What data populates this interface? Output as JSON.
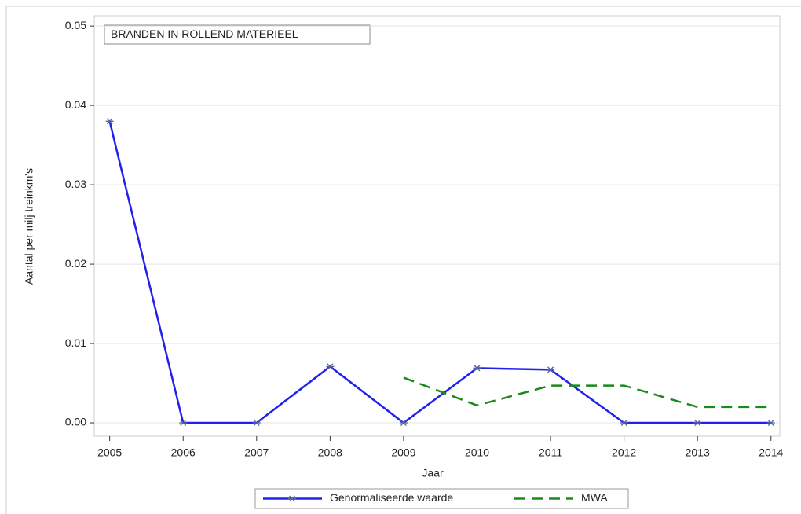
{
  "chart_data": {
    "type": "line",
    "annotation": "BRANDEN IN ROLLEND MATERIEEL",
    "xlabel": "Jaar",
    "ylabel": "Aantal per milj treinkm's",
    "x": [
      2005,
      2006,
      2007,
      2008,
      2009,
      2010,
      2011,
      2012,
      2013,
      2014
    ],
    "series": [
      {
        "name": "Genormaliseerde waarde",
        "color": "#2020f0",
        "marker": "asterisk",
        "dash": "solid",
        "values": [
          0.038,
          0,
          0,
          0.0071,
          0,
          0.0069,
          0.0067,
          0,
          0,
          0
        ]
      },
      {
        "name": "MWA",
        "color": "#1a8a1a",
        "marker": "none",
        "dash": "dashed",
        "values": [
          null,
          null,
          null,
          null,
          0.0057,
          0.0022,
          0.0047,
          0.0047,
          0.002,
          0.002
        ]
      }
    ],
    "xlim": [
      2004.79,
      2014.12
    ],
    "xticks": [
      2005,
      2006,
      2007,
      2008,
      2009,
      2010,
      2011,
      2012,
      2013,
      2014
    ],
    "ylim": [
      -0.00168,
      0.0513
    ],
    "yticks": [
      {
        "value": 0,
        "label": "0.00"
      },
      0.01,
      0.02,
      0.03,
      0.04,
      0.05
    ],
    "grid": true,
    "legend": "bottom"
  }
}
